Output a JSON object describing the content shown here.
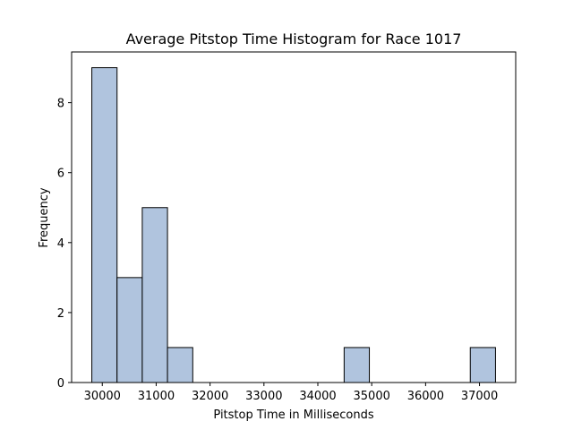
{
  "chart_data": {
    "type": "histogram",
    "title": "Average Pitstop Time Histogram for Race 1017",
    "xlabel": "Pitstop Time in Milliseconds",
    "ylabel": "Frequency",
    "xlim": [
      29431,
      37672
    ],
    "ylim": [
      0,
      9.45
    ],
    "x_ticks": [
      30000,
      31000,
      32000,
      33000,
      34000,
      35000,
      36000,
      37000
    ],
    "y_ticks": [
      0,
      2,
      4,
      6,
      8
    ],
    "bar_color": "#b0c4de",
    "edge_color": "#000000",
    "bins": [
      {
        "x0": 29806,
        "x1": 30274,
        "count": 9
      },
      {
        "x0": 30274,
        "x1": 30742,
        "count": 3
      },
      {
        "x0": 30742,
        "x1": 31210,
        "count": 5
      },
      {
        "x0": 31210,
        "x1": 31679,
        "count": 1
      },
      {
        "x0": 31679,
        "x1": 32147,
        "count": 0
      },
      {
        "x0": 32147,
        "x1": 32615,
        "count": 0
      },
      {
        "x0": 32615,
        "x1": 33083,
        "count": 0
      },
      {
        "x0": 33083,
        "x1": 33552,
        "count": 0
      },
      {
        "x0": 33552,
        "x1": 34020,
        "count": 0
      },
      {
        "x0": 34020,
        "x1": 34488,
        "count": 0
      },
      {
        "x0": 34488,
        "x1": 34956,
        "count": 1
      },
      {
        "x0": 34956,
        "x1": 35424,
        "count": 0
      },
      {
        "x0": 35424,
        "x1": 35893,
        "count": 0
      },
      {
        "x0": 35893,
        "x1": 36361,
        "count": 0
      },
      {
        "x0": 36361,
        "x1": 36829,
        "count": 0
      },
      {
        "x0": 36829,
        "x1": 37297,
        "count": 1
      }
    ],
    "grid": false,
    "legend": "none"
  }
}
